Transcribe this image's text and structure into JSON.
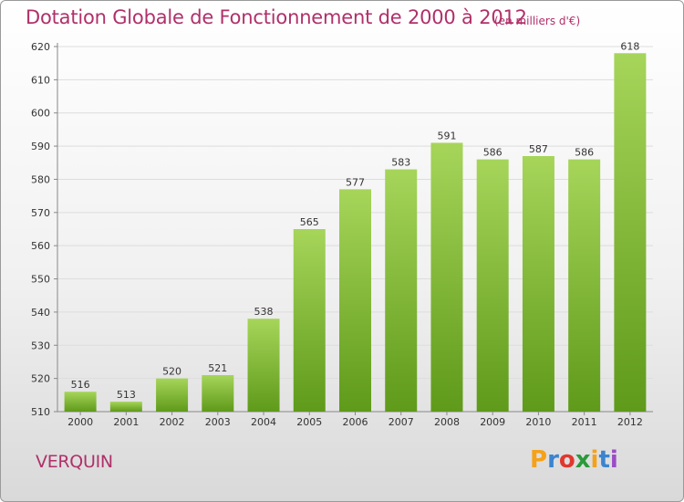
{
  "title": "Dotation Globale de Fonctionnement de 2000 à 2012",
  "unit_note": "(en milliers d'€)",
  "commune": "VERQUIN",
  "logo": {
    "letters": [
      "P",
      "r",
      "o",
      "x",
      "i",
      "t",
      "i"
    ],
    "colors": [
      "#f5a11a",
      "#3a84d0",
      "#e0372e",
      "#2a9a3a",
      "#f5a11a",
      "#3a84d0",
      "#9b4cc6"
    ]
  },
  "chart_data": {
    "type": "bar",
    "title": "Dotation Globale de Fonctionnement de 2000 à 2012",
    "categories": [
      "2000",
      "2001",
      "2002",
      "2003",
      "2004",
      "2005",
      "2006",
      "2007",
      "2008",
      "2009",
      "2010",
      "2011",
      "2012"
    ],
    "values": [
      516,
      513,
      520,
      521,
      538,
      565,
      577,
      583,
      591,
      586,
      587,
      586,
      618
    ],
    "ylim": [
      510,
      620
    ],
    "yticks": [
      510,
      520,
      530,
      540,
      550,
      560,
      570,
      580,
      590,
      600,
      610,
      620
    ],
    "grid": true,
    "bar_color_top": "#a6d55a",
    "bar_color_bottom": "#5f9a1a"
  }
}
